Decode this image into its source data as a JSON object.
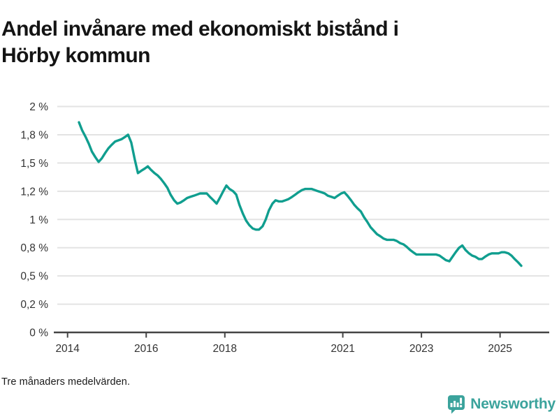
{
  "header": {
    "title": "Andel invånare med ekonomiskt bistånd i Hörby kommun",
    "title_lines": [
      "Andel invånare med ekonomiskt bistånd i",
      "Hörby kommun"
    ]
  },
  "footer": {
    "note": "Tre månaders medelvärden.",
    "brand": {
      "name": "Newsworthy",
      "icon": "newsworthy-logo-icon",
      "color": "#3BA39C"
    }
  },
  "chart_data": {
    "type": "line",
    "title": "Andel invånare med ekonomiskt bistånd i Hörby kommun",
    "subtitle": "",
    "note": "Tre månaders medelvärden.",
    "unit": "%",
    "xlabel": "",
    "ylabel": "",
    "grid": "horizontal",
    "legend": "none",
    "xlim": [
      2013.65,
      2026.25
    ],
    "ylim": [
      0,
      2
    ],
    "x_ticks": {
      "values": [
        2014,
        2016,
        2018,
        2021,
        2023,
        2025
      ],
      "labels": [
        "2014",
        "2016",
        "2018",
        "2021",
        "2023",
        "2025"
      ]
    },
    "y_ticks": {
      "values": [
        0,
        0.25,
        0.5,
        0.75,
        1,
        1.25,
        1.5,
        1.75,
        2
      ],
      "labels": [
        "0 %",
        "0,2 %",
        "0,5 %",
        "0,8 %",
        "1 %",
        "1,2 %",
        "1,5 %",
        "1,8 %",
        "2 %"
      ]
    },
    "colors": {
      "line": "#109E8F",
      "grid": "#E3E3E3",
      "axis": "#444444",
      "tick_label": "#333333"
    },
    "series": [
      {
        "name": "Andel invånare med ekonomiskt bistånd",
        "points": [
          [
            2014.29,
            1.86
          ],
          [
            2014.37,
            1.79
          ],
          [
            2014.46,
            1.73
          ],
          [
            2014.54,
            1.67
          ],
          [
            2014.62,
            1.6
          ],
          [
            2014.71,
            1.55
          ],
          [
            2014.79,
            1.51
          ],
          [
            2014.87,
            1.54
          ],
          [
            2014.96,
            1.59
          ],
          [
            2015.04,
            1.63
          ],
          [
            2015.12,
            1.66
          ],
          [
            2015.21,
            1.69
          ],
          [
            2015.29,
            1.7
          ],
          [
            2015.37,
            1.71
          ],
          [
            2015.46,
            1.73
          ],
          [
            2015.54,
            1.75
          ],
          [
            2015.62,
            1.68
          ],
          [
            2015.71,
            1.53
          ],
          [
            2015.79,
            1.41
          ],
          [
            2015.87,
            1.43
          ],
          [
            2015.96,
            1.45
          ],
          [
            2016.04,
            1.47
          ],
          [
            2016.12,
            1.44
          ],
          [
            2016.21,
            1.41
          ],
          [
            2016.29,
            1.39
          ],
          [
            2016.37,
            1.36
          ],
          [
            2016.46,
            1.32
          ],
          [
            2016.54,
            1.28
          ],
          [
            2016.62,
            1.22
          ],
          [
            2016.71,
            1.17
          ],
          [
            2016.79,
            1.14
          ],
          [
            2016.87,
            1.15
          ],
          [
            2016.96,
            1.17
          ],
          [
            2017.04,
            1.19
          ],
          [
            2017.12,
            1.2
          ],
          [
            2017.21,
            1.21
          ],
          [
            2017.29,
            1.22
          ],
          [
            2017.37,
            1.23
          ],
          [
            2017.46,
            1.23
          ],
          [
            2017.54,
            1.23
          ],
          [
            2017.62,
            1.2
          ],
          [
            2017.71,
            1.17
          ],
          [
            2017.79,
            1.14
          ],
          [
            2017.87,
            1.19
          ],
          [
            2017.96,
            1.25
          ],
          [
            2018.04,
            1.3
          ],
          [
            2018.12,
            1.27
          ],
          [
            2018.21,
            1.25
          ],
          [
            2018.29,
            1.22
          ],
          [
            2018.37,
            1.13
          ],
          [
            2018.46,
            1.05
          ],
          [
            2018.54,
            0.99
          ],
          [
            2018.62,
            0.95
          ],
          [
            2018.71,
            0.92
          ],
          [
            2018.79,
            0.91
          ],
          [
            2018.87,
            0.91
          ],
          [
            2018.96,
            0.94
          ],
          [
            2019.04,
            1.0
          ],
          [
            2019.12,
            1.08
          ],
          [
            2019.21,
            1.14
          ],
          [
            2019.29,
            1.17
          ],
          [
            2019.37,
            1.16
          ],
          [
            2019.46,
            1.16
          ],
          [
            2019.54,
            1.17
          ],
          [
            2019.62,
            1.18
          ],
          [
            2019.71,
            1.2
          ],
          [
            2019.79,
            1.22
          ],
          [
            2019.87,
            1.24
          ],
          [
            2019.96,
            1.26
          ],
          [
            2020.04,
            1.27
          ],
          [
            2020.12,
            1.27
          ],
          [
            2020.21,
            1.27
          ],
          [
            2020.29,
            1.26
          ],
          [
            2020.37,
            1.25
          ],
          [
            2020.46,
            1.24
          ],
          [
            2020.54,
            1.23
          ],
          [
            2020.62,
            1.21
          ],
          [
            2020.71,
            1.2
          ],
          [
            2020.79,
            1.19
          ],
          [
            2020.87,
            1.21
          ],
          [
            2020.96,
            1.23
          ],
          [
            2021.04,
            1.24
          ],
          [
            2021.12,
            1.21
          ],
          [
            2021.21,
            1.17
          ],
          [
            2021.29,
            1.13
          ],
          [
            2021.37,
            1.1
          ],
          [
            2021.46,
            1.07
          ],
          [
            2021.54,
            1.02
          ],
          [
            2021.62,
            0.98
          ],
          [
            2021.71,
            0.93
          ],
          [
            2021.79,
            0.9
          ],
          [
            2021.87,
            0.87
          ],
          [
            2021.96,
            0.85
          ],
          [
            2022.04,
            0.83
          ],
          [
            2022.12,
            0.82
          ],
          [
            2022.21,
            0.82
          ],
          [
            2022.29,
            0.82
          ],
          [
            2022.37,
            0.81
          ],
          [
            2022.46,
            0.79
          ],
          [
            2022.54,
            0.78
          ],
          [
            2022.62,
            0.76
          ],
          [
            2022.71,
            0.73
          ],
          [
            2022.79,
            0.71
          ],
          [
            2022.87,
            0.69
          ],
          [
            2022.96,
            0.69
          ],
          [
            2023.04,
            0.69
          ],
          [
            2023.12,
            0.69
          ],
          [
            2023.21,
            0.69
          ],
          [
            2023.29,
            0.69
          ],
          [
            2023.37,
            0.69
          ],
          [
            2023.46,
            0.68
          ],
          [
            2023.54,
            0.66
          ],
          [
            2023.62,
            0.64
          ],
          [
            2023.71,
            0.63
          ],
          [
            2023.79,
            0.67
          ],
          [
            2023.87,
            0.71
          ],
          [
            2023.96,
            0.75
          ],
          [
            2024.04,
            0.77
          ],
          [
            2024.12,
            0.73
          ],
          [
            2024.21,
            0.7
          ],
          [
            2024.29,
            0.68
          ],
          [
            2024.37,
            0.67
          ],
          [
            2024.46,
            0.65
          ],
          [
            2024.54,
            0.65
          ],
          [
            2024.62,
            0.67
          ],
          [
            2024.71,
            0.69
          ],
          [
            2024.79,
            0.7
          ],
          [
            2024.87,
            0.7
          ],
          [
            2024.96,
            0.7
          ],
          [
            2025.04,
            0.71
          ],
          [
            2025.12,
            0.71
          ],
          [
            2025.21,
            0.7
          ],
          [
            2025.29,
            0.68
          ],
          [
            2025.37,
            0.65
          ],
          [
            2025.46,
            0.62
          ],
          [
            2025.54,
            0.59
          ]
        ]
      }
    ]
  }
}
